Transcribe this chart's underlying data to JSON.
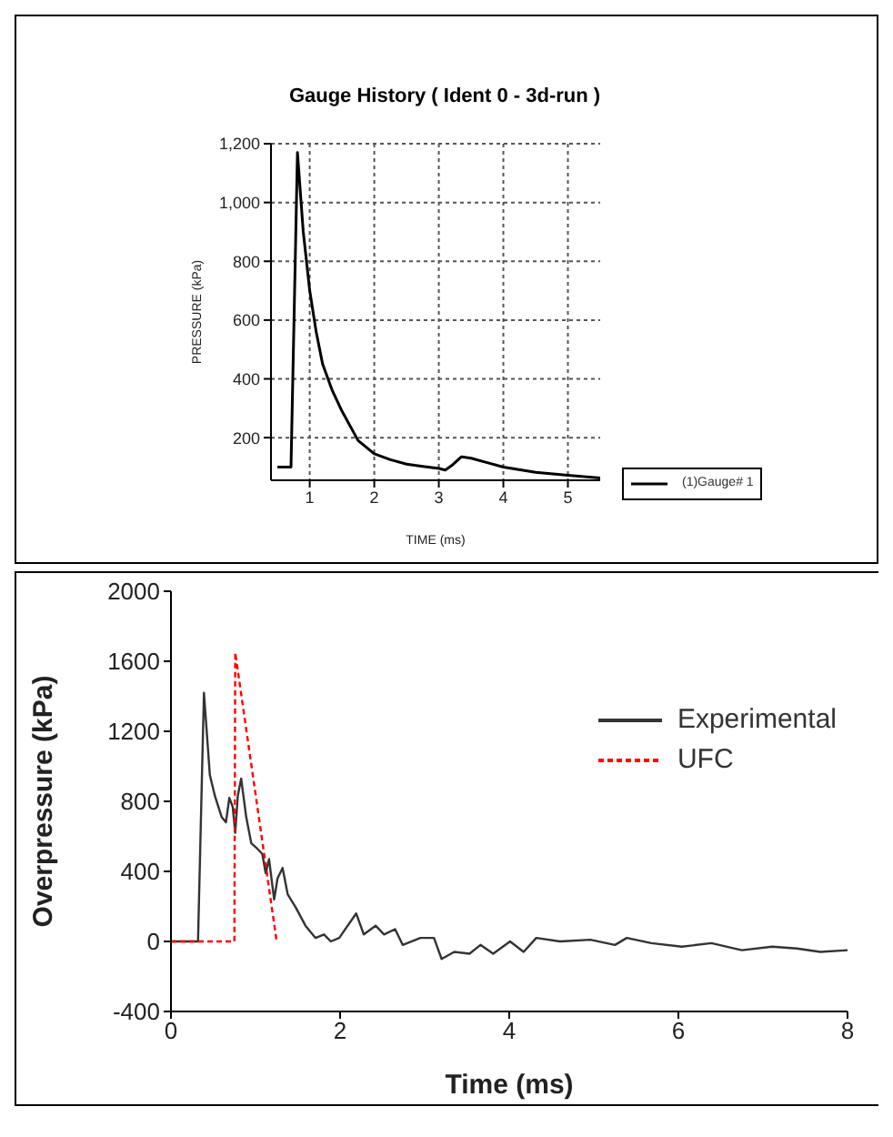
{
  "chart_data": [
    {
      "type": "line",
      "title": "Gauge History ( Ident 0 - 3d-run )",
      "xlabel": "TIME (ms)",
      "ylabel": "PRESSURE (kPa)",
      "xlim": [
        0.4,
        5.5
      ],
      "xticks": [
        1,
        2,
        3,
        4,
        5
      ],
      "ylim": [
        55,
        1200
      ],
      "yticks": [
        200,
        400,
        600,
        800,
        {
          "value": 1000,
          "label": "1,000"
        },
        {
          "value": 1200,
          "label": "1,200"
        }
      ],
      "grid": true,
      "legend": "right",
      "marker": "none",
      "series": [
        {
          "name": "(1)Gauge# 1",
          "color": "#000000",
          "line_style": "solid",
          "x": [
            0.5,
            0.68,
            0.71,
            0.81,
            0.9,
            1.0,
            1.1,
            1.2,
            1.35,
            1.5,
            1.75,
            2.0,
            2.25,
            2.5,
            2.75,
            3.0,
            3.1,
            3.2,
            3.35,
            3.5,
            3.75,
            4.0,
            4.5,
            5.0,
            5.5
          ],
          "values": [
            100,
            100,
            100,
            1170,
            900,
            700,
            560,
            450,
            360,
            290,
            190,
            145,
            125,
            110,
            102,
            95,
            90,
            105,
            135,
            130,
            115,
            100,
            82,
            72,
            63
          ]
        }
      ]
    },
    {
      "type": "line",
      "xlabel": "Time (ms)",
      "ylabel": "Overpressure (kPa)",
      "xlim": [
        0,
        8
      ],
      "xticks": [
        0,
        2,
        4,
        6,
        8
      ],
      "ylim": [
        -400,
        2000
      ],
      "yticks": [
        -400,
        0,
        400,
        800,
        1200,
        1600,
        2000
      ],
      "grid": false,
      "legend": "top right",
      "marker": "none",
      "series": [
        {
          "name": "Experimental",
          "color": "#333333",
          "line_style": "solid",
          "x": [
            0,
            0.32,
            0.39,
            0.46,
            0.52,
            0.6,
            0.65,
            0.69,
            0.73,
            0.76,
            0.79,
            0.83,
            0.89,
            0.95,
            1.02,
            1.08,
            1.12,
            1.16,
            1.22,
            1.26,
            1.32,
            1.38,
            1.48,
            1.59,
            1.71,
            1.81,
            1.89,
            1.99,
            2.09,
            2.19,
            2.28,
            2.42,
            2.52,
            2.65,
            2.74,
            2.95,
            3.11,
            3.2,
            3.35,
            3.53,
            3.66,
            3.81,
            4.01,
            4.17,
            4.32,
            4.6,
            4.96,
            5.25,
            5.39,
            5.68,
            6.04,
            6.39,
            6.75,
            7.11,
            7.4,
            7.68,
            8.0
          ],
          "values": [
            0,
            0,
            1420,
            950,
            830,
            710,
            680,
            820,
            770,
            620,
            830,
            930,
            710,
            560,
            530,
            500,
            390,
            470,
            240,
            360,
            420,
            270,
            190,
            90,
            20,
            40,
            0,
            20,
            90,
            160,
            40,
            90,
            40,
            70,
            -20,
            20,
            20,
            -100,
            -60,
            -70,
            -20,
            -70,
            0,
            -60,
            20,
            0,
            10,
            -20,
            20,
            -10,
            -30,
            -10,
            -50,
            -30,
            -40,
            -60,
            -50
          ]
        },
        {
          "name": "UFC",
          "color": "#ff0000",
          "line_style": "dashed",
          "x": [
            0,
            0.75,
            0.76,
            1.25
          ],
          "values": [
            0,
            0,
            1650,
            0
          ]
        }
      ]
    }
  ]
}
